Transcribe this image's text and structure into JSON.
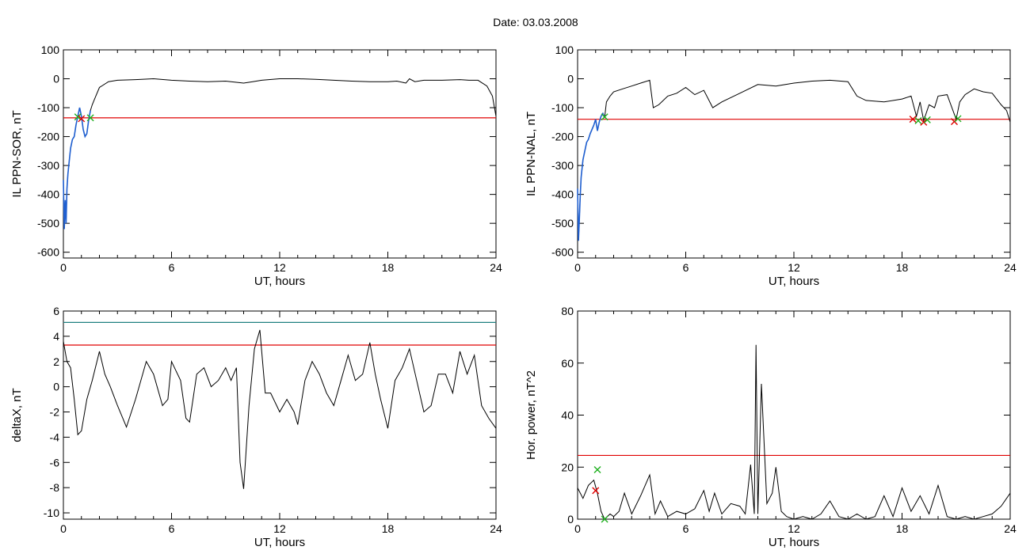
{
  "page": {
    "title": "Date:  03.03.2008"
  },
  "chart_data": [
    {
      "type": "line",
      "xlabel": "UT, hours",
      "ylabel": "IL PPN-SOR, nT",
      "xlim": [
        0,
        24
      ],
      "ylim": [
        -620,
        100
      ],
      "xticks": [
        0,
        6,
        12,
        18,
        24
      ],
      "yticks": [
        -600,
        -500,
        -400,
        -300,
        -200,
        -100,
        0,
        100
      ],
      "threshold": -135,
      "colors": {
        "trace": "#000000",
        "threshold": "#e00000",
        "highlight": "#1f5fd0",
        "marker_green": "#20b020",
        "marker_red": "#e00000"
      },
      "series": [
        {
          "values_x": [
            0,
            0.05,
            0.1,
            0.15,
            0.2,
            0.25,
            0.3,
            0.4,
            0.5,
            0.6,
            0.7,
            0.8,
            0.9,
            1.0,
            1.1,
            1.2,
            1.3,
            1.4,
            1.5,
            1.6,
            1.8,
            2.0,
            2.5,
            3.0,
            4.0,
            5.0,
            6.0,
            7.0,
            8.0,
            9.0,
            10.0,
            10.5,
            11.0,
            12.0,
            13.0,
            14.0,
            15.0,
            16.0,
            17.0,
            18.0,
            18.5,
            19.0,
            19.2,
            19.5,
            20.0,
            21.0,
            22.0,
            22.5,
            23.0,
            23.5,
            23.8,
            24.0
          ],
          "values_y": [
            -350,
            -520,
            -420,
            -500,
            -380,
            -330,
            -300,
            -240,
            -210,
            -200,
            -160,
            -130,
            -100,
            -130,
            -175,
            -200,
            -190,
            -145,
            -110,
            -90,
            -60,
            -30,
            -10,
            -5,
            -3,
            0,
            -5,
            -8,
            -10,
            -8,
            -15,
            -10,
            -5,
            0,
            0,
            -2,
            -5,
            -8,
            -10,
            -10,
            -8,
            -15,
            0,
            -10,
            -5,
            -5,
            -3,
            -5,
            -5,
            -25,
            -60,
            -130
          ]
        }
      ],
      "highlight": {
        "x_from": 0,
        "x_to": 1.5
      },
      "markers": [
        {
          "x": 0.8,
          "y": -132,
          "kind": "green"
        },
        {
          "x": 1.0,
          "y": -138,
          "kind": "red"
        },
        {
          "x": 1.5,
          "y": -135,
          "kind": "green"
        }
      ]
    },
    {
      "type": "line",
      "xlabel": "UT, hours",
      "ylabel": "IL PPN-NAL, nT",
      "xlim": [
        0,
        24
      ],
      "ylim": [
        -620,
        100
      ],
      "xticks": [
        0,
        6,
        12,
        18,
        24
      ],
      "yticks": [
        -600,
        -500,
        -400,
        -300,
        -200,
        -100,
        0,
        100
      ],
      "threshold": -140,
      "colors": {
        "trace": "#000000",
        "threshold": "#e00000",
        "highlight": "#1f5fd0",
        "marker_green": "#20b020",
        "marker_red": "#e00000"
      },
      "series": [
        {
          "values_x": [
            0,
            0.05,
            0.1,
            0.15,
            0.2,
            0.3,
            0.4,
            0.5,
            0.6,
            0.7,
            0.8,
            0.9,
            1.0,
            1.1,
            1.2,
            1.3,
            1.4,
            1.5,
            1.6,
            1.8,
            2.0,
            2.5,
            3.0,
            3.5,
            4.0,
            4.2,
            4.5,
            5.0,
            5.5,
            6.0,
            6.5,
            7.0,
            7.5,
            8.0,
            9.0,
            10.0,
            11.0,
            12.0,
            13.0,
            14.0,
            15.0,
            15.5,
            16.0,
            17.0,
            18.0,
            18.5,
            18.8,
            19.0,
            19.2,
            19.5,
            19.8,
            20.0,
            20.5,
            21.0,
            21.2,
            21.5,
            22.0,
            22.5,
            23.0,
            23.5,
            23.8,
            24.0
          ],
          "values_y": [
            -380,
            -560,
            -480,
            -400,
            -340,
            -280,
            -250,
            -220,
            -210,
            -190,
            -175,
            -160,
            -140,
            -180,
            -150,
            -130,
            -120,
            -135,
            -80,
            -60,
            -45,
            -35,
            -25,
            -15,
            -5,
            -100,
            -90,
            -60,
            -50,
            -30,
            -55,
            -40,
            -100,
            -80,
            -50,
            -20,
            -25,
            -15,
            -8,
            -5,
            -10,
            -60,
            -75,
            -80,
            -70,
            -60,
            -130,
            -80,
            -145,
            -90,
            -100,
            -60,
            -55,
            -140,
            -80,
            -55,
            -35,
            -45,
            -50,
            -90,
            -110,
            -150
          ]
        }
      ],
      "highlight": {
        "x_from": 0,
        "x_to": 1.5
      },
      "markers": [
        {
          "x": 1.5,
          "y": -132,
          "kind": "green"
        },
        {
          "x": 18.6,
          "y": -140,
          "kind": "red"
        },
        {
          "x": 18.9,
          "y": -145,
          "kind": "green"
        },
        {
          "x": 19.2,
          "y": -150,
          "kind": "red"
        },
        {
          "x": 19.4,
          "y": -142,
          "kind": "green"
        },
        {
          "x": 20.9,
          "y": -148,
          "kind": "red"
        },
        {
          "x": 21.1,
          "y": -138,
          "kind": "green"
        }
      ]
    },
    {
      "type": "line",
      "xlabel": "UT, hours",
      "ylabel": "deltaX, nT",
      "xlim": [
        0,
        24
      ],
      "ylim": [
        -10.5,
        6
      ],
      "xticks": [
        0,
        6,
        12,
        18,
        24
      ],
      "yticks": [
        -10,
        -8,
        -6,
        -4,
        -2,
        0,
        2,
        4,
        6
      ],
      "threshold": 3.3,
      "threshold2": 5.1,
      "colors": {
        "trace": "#000000",
        "threshold": "#e00000",
        "threshold2": "#208080"
      },
      "series": [
        {
          "values_x": [
            0,
            0.2,
            0.4,
            0.6,
            0.8,
            1.0,
            1.3,
            1.6,
            2.0,
            2.3,
            2.6,
            3.0,
            3.5,
            4.0,
            4.3,
            4.6,
            5.0,
            5.5,
            5.8,
            6.0,
            6.5,
            6.8,
            7.0,
            7.4,
            7.8,
            8.2,
            8.6,
            9.0,
            9.3,
            9.6,
            9.8,
            10.0,
            10.3,
            10.6,
            10.9,
            11.2,
            11.5,
            12.0,
            12.4,
            12.8,
            13.0,
            13.4,
            13.8,
            14.2,
            14.6,
            15.0,
            15.4,
            15.8,
            16.2,
            16.6,
            17.0,
            17.3,
            17.6,
            18.0,
            18.4,
            18.8,
            19.2,
            19.6,
            20.0,
            20.4,
            20.8,
            21.2,
            21.6,
            22.0,
            22.4,
            22.8,
            23.2,
            23.6,
            24.0
          ],
          "values_y": [
            3.6,
            2.0,
            1.5,
            -1.0,
            -3.8,
            -3.5,
            -1.0,
            0.5,
            2.8,
            1.0,
            0.0,
            -1.5,
            -3.2,
            -1.0,
            0.5,
            2.0,
            1.0,
            -1.5,
            -1.0,
            2.0,
            0.5,
            -2.5,
            -2.8,
            1.0,
            1.5,
            0.0,
            0.5,
            1.5,
            0.5,
            1.5,
            -6.0,
            -8.1,
            -1.5,
            3.0,
            4.5,
            -0.5,
            -0.5,
            -2.0,
            -1.0,
            -2.0,
            -3.0,
            0.5,
            2.0,
            1.0,
            -0.5,
            -1.5,
            0.5,
            2.5,
            0.5,
            1.0,
            3.5,
            1.0,
            -1.0,
            -3.3,
            0.5,
            1.5,
            3.0,
            0.5,
            -2.0,
            -1.5,
            1.0,
            1.0,
            -0.5,
            2.8,
            1.0,
            2.5,
            -1.5,
            -2.5,
            -3.3
          ]
        }
      ]
    },
    {
      "type": "line",
      "xlabel": "UT, hours",
      "ylabel": "Hor. power, nT^2",
      "xlim": [
        0,
        24
      ],
      "ylim": [
        0,
        80
      ],
      "xticks": [
        0,
        6,
        12,
        18,
        24
      ],
      "yticks": [
        0,
        20,
        40,
        60,
        80
      ],
      "threshold": 24.5,
      "colors": {
        "trace": "#000000",
        "threshold": "#e00000",
        "marker_green": "#20b020",
        "marker_red": "#e00000"
      },
      "series": [
        {
          "values_x": [
            0,
            0.3,
            0.6,
            0.9,
            1.1,
            1.3,
            1.5,
            1.8,
            2.0,
            2.3,
            2.6,
            3.0,
            3.5,
            4.0,
            4.3,
            4.6,
            5.0,
            5.5,
            6.0,
            6.5,
            7.0,
            7.3,
            7.6,
            8.0,
            8.5,
            9.0,
            9.3,
            9.6,
            9.8,
            9.9,
            10.0,
            10.2,
            10.5,
            10.8,
            11.0,
            11.3,
            11.6,
            12.0,
            12.5,
            13.0,
            13.5,
            14.0,
            14.5,
            15.0,
            15.5,
            16.0,
            16.5,
            17.0,
            17.5,
            18.0,
            18.5,
            19.0,
            19.5,
            20.0,
            20.5,
            21.0,
            21.5,
            22.0,
            22.5,
            23.0,
            23.5,
            24.0
          ],
          "values_y": [
            12,
            8,
            13,
            15,
            10,
            3,
            0,
            2,
            1,
            3,
            10,
            2,
            9,
            17,
            2,
            7,
            1,
            3,
            2,
            4,
            11,
            3,
            10,
            2,
            6,
            5,
            2,
            21,
            2,
            67,
            2,
            52,
            6,
            10,
            20,
            3,
            1,
            0,
            1,
            0,
            2,
            7,
            1,
            0,
            2,
            0,
            1,
            9,
            1,
            12,
            3,
            9,
            2,
            13,
            1,
            0,
            1,
            0,
            1,
            2,
            5,
            10
          ]
        }
      ],
      "markers": [
        {
          "x": 1.0,
          "y": 11,
          "kind": "red"
        },
        {
          "x": 1.1,
          "y": 19,
          "kind": "green"
        },
        {
          "x": 1.5,
          "y": 0,
          "kind": "green"
        }
      ]
    }
  ]
}
